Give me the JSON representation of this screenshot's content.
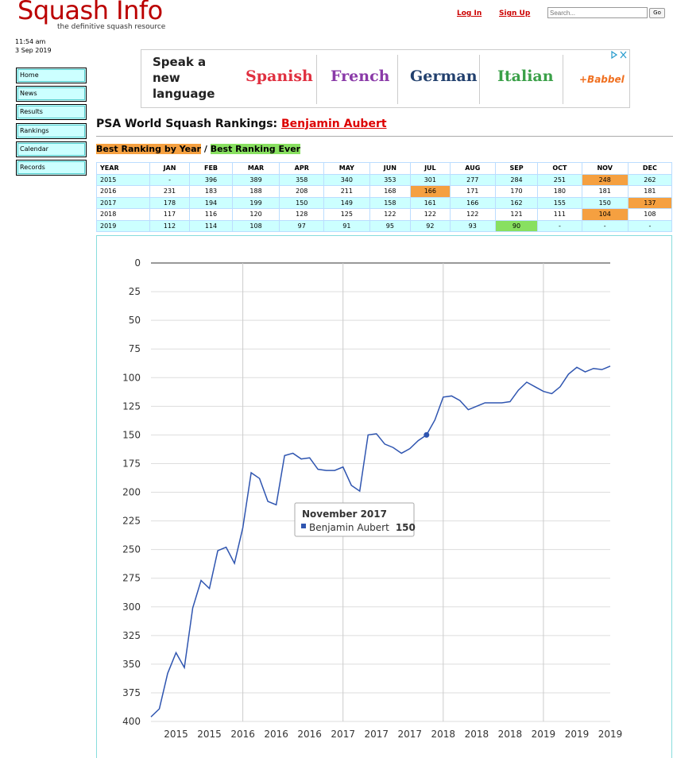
{
  "header": {
    "logo": "Squash Info",
    "tagline": "the definitive squash resource",
    "login": "Log In",
    "signup": "Sign Up",
    "search_placeholder": "Search...",
    "go": "Go"
  },
  "datetime": {
    "time": "11:54 am",
    "date": "3 Sep 2019"
  },
  "nav": [
    "Home",
    "News",
    "Results",
    "Rankings",
    "Calendar",
    "Records"
  ],
  "ad": {
    "headline": "Speak a new language",
    "languages": [
      "Spanish",
      "French",
      "German",
      "Italian"
    ],
    "brand": "+Babbel"
  },
  "page_title": "PSA World Squash Rankings:",
  "player": "Benjamin Aubert",
  "links": {
    "by_year": "Best Ranking by Year",
    "separator": "/",
    "ever": "Best Ranking Ever"
  },
  "table": {
    "columns": [
      "YEAR",
      "JAN",
      "FEB",
      "MAR",
      "APR",
      "MAY",
      "JUN",
      "JUL",
      "AUG",
      "SEP",
      "OCT",
      "NOV",
      "DEC"
    ],
    "rows": [
      [
        "2015",
        "-",
        396,
        389,
        358,
        340,
        353,
        301,
        277,
        284,
        251,
        248,
        262
      ],
      [
        "2016",
        231,
        183,
        188,
        208,
        211,
        168,
        166,
        171,
        170,
        180,
        181,
        181
      ],
      [
        "2017",
        178,
        194,
        199,
        150,
        149,
        158,
        161,
        166,
        162,
        155,
        150,
        137
      ],
      [
        "2018",
        117,
        116,
        120,
        128,
        125,
        122,
        122,
        122,
        121,
        111,
        104,
        108
      ],
      [
        "2019",
        112,
        114,
        108,
        97,
        91,
        95,
        92,
        93,
        90,
        "-",
        "-",
        "-"
      ]
    ]
  },
  "chart_data": {
    "type": "line",
    "categories": [
      null,
      null,
      null,
      "2015",
      null,
      null,
      null,
      "2015",
      null,
      null,
      null,
      "2016",
      null,
      null,
      null,
      "2016",
      null,
      null,
      null,
      "2016",
      null,
      null,
      null,
      "2017",
      null,
      null,
      null,
      "2017",
      null,
      null,
      null,
      "2017",
      null,
      null,
      null,
      "2018",
      null,
      null,
      null,
      "2018",
      null,
      null,
      null,
      "2018",
      null,
      null,
      null,
      "2019",
      null,
      null,
      null,
      "2019",
      null,
      null,
      null,
      "2019"
    ],
    "series": [
      {
        "name": "Benjamin Aubert",
        "color": "#2f55b0",
        "values": [
          396,
          389,
          358,
          340,
          353,
          301,
          277,
          284,
          251,
          248,
          262,
          231,
          183,
          188,
          208,
          211,
          168,
          166,
          171,
          170,
          180,
          181,
          181,
          178,
          194,
          199,
          150,
          149,
          158,
          161,
          166,
          162,
          155,
          150,
          137,
          117,
          116,
          120,
          128,
          125,
          122,
          122,
          122,
          121,
          111,
          104,
          108,
          112,
          114,
          108,
          97,
          91,
          95,
          92,
          93,
          90
        ]
      }
    ],
    "ylim": [
      0,
      400
    ],
    "y_reversed": true,
    "yticks": [
      0,
      25,
      50,
      75,
      100,
      125,
      150,
      175,
      200,
      225,
      250,
      275,
      300,
      325,
      350,
      375,
      400
    ],
    "grid": true,
    "tooltip": {
      "title": "November 2017"
    }
  }
}
